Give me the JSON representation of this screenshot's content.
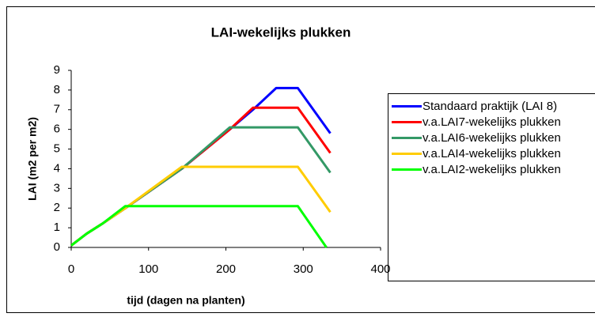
{
  "chart_data": {
    "type": "line",
    "title": "LAI-wekelijks plukken",
    "x_label": "tijd (dagen na planten)",
    "y_label": "LAI (m2 per m2)",
    "xlim": [
      0,
      400
    ],
    "xticks": [
      0,
      100,
      200,
      300,
      400
    ],
    "ylim": [
      0,
      9
    ],
    "yticks": [
      0,
      1,
      2,
      3,
      4,
      5,
      6,
      7,
      8,
      9
    ],
    "grid": false,
    "legend": "right",
    "series": [
      {
        "name": "Standaard praktijk (LAI 8)",
        "color": "#0000ff",
        "x": [
          0,
          20,
          40,
          70,
          143,
          205,
          235,
          265,
          293,
          335
        ],
        "values": [
          0.1,
          0.7,
          1.2,
          2.0,
          4.0,
          6.0,
          7.0,
          8.1,
          8.1,
          5.8
        ]
      },
      {
        "name": "v.a.LAI7-wekelijks plukken",
        "color": "#ff0000",
        "x": [
          0,
          20,
          40,
          70,
          143,
          205,
          235,
          293,
          335
        ],
        "values": [
          0.1,
          0.7,
          1.2,
          2.0,
          4.0,
          6.0,
          7.1,
          7.1,
          4.8
        ]
      },
      {
        "name": "v.a.LAI6-wekelijks plukken",
        "color": "#339966",
        "x": [
          0,
          20,
          40,
          70,
          143,
          205,
          293,
          335
        ],
        "values": [
          0.1,
          0.7,
          1.2,
          2.0,
          4.0,
          6.1,
          6.1,
          3.8
        ]
      },
      {
        "name": "v.a.LAI4-wekelijks plukken",
        "color": "#ffcc00",
        "x": [
          0,
          20,
          40,
          70,
          143,
          293,
          335
        ],
        "values": [
          0.1,
          0.7,
          1.2,
          2.0,
          4.1,
          4.1,
          1.8
        ]
      },
      {
        "name": "v.a.LAI2-wekelijks plukken",
        "color": "#00ff00",
        "x": [
          0,
          20,
          40,
          70,
          293,
          330
        ],
        "values": [
          0.1,
          0.7,
          1.2,
          2.1,
          2.1,
          0
        ]
      }
    ]
  }
}
